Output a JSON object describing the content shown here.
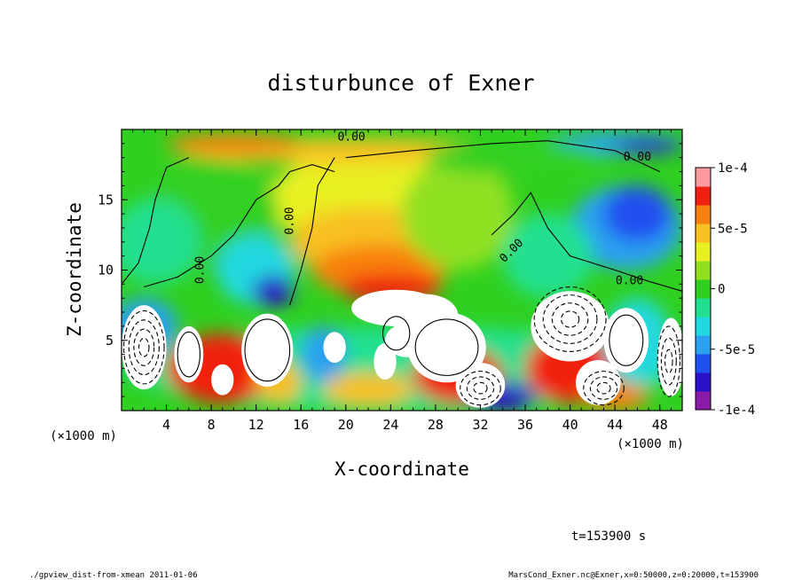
{
  "chart_data": {
    "type": "heatmap",
    "title": "disturbunce of Exner",
    "xlabel": "X-coordinate",
    "ylabel": "Z-coordinate",
    "x_unit": "(×1000 m)",
    "y_unit": "(×1000 m)",
    "xlim": [
      0,
      50
    ],
    "ylim": [
      0,
      20
    ],
    "x_ticks": [
      4,
      8,
      12,
      16,
      20,
      24,
      28,
      32,
      36,
      40,
      44,
      48
    ],
    "y_ticks": [
      5,
      10,
      15
    ],
    "colorbar": {
      "min": -0.0001,
      "max": 0.0001,
      "tick_values": [
        0.0001,
        5e-05,
        0,
        -5e-05,
        -0.0001
      ],
      "tick_labels": [
        "1e-4",
        "5e-5",
        "0",
        "-5e-5",
        "-1e-4"
      ],
      "colors": [
        "#8a1aa8",
        "#2a10c8",
        "#2050f0",
        "#2aa0f0",
        "#20d8e0",
        "#20e090",
        "#30d020",
        "#90e020",
        "#e8f020",
        "#f8c020",
        "#f88010",
        "#f02010",
        "#ff9aa0"
      ]
    },
    "contour_labels": [
      "0.00",
      "0.00",
      "0.00",
      "0.00",
      "0.00",
      "0.00"
    ],
    "time_label": "t=153900 s"
  },
  "footer": {
    "left": "./gpview_dist-from-xmean  2011-01-06",
    "right": "MarsCond_Exner.nc@Exner,x=0:50000,z=0:20000,t=153900"
  }
}
